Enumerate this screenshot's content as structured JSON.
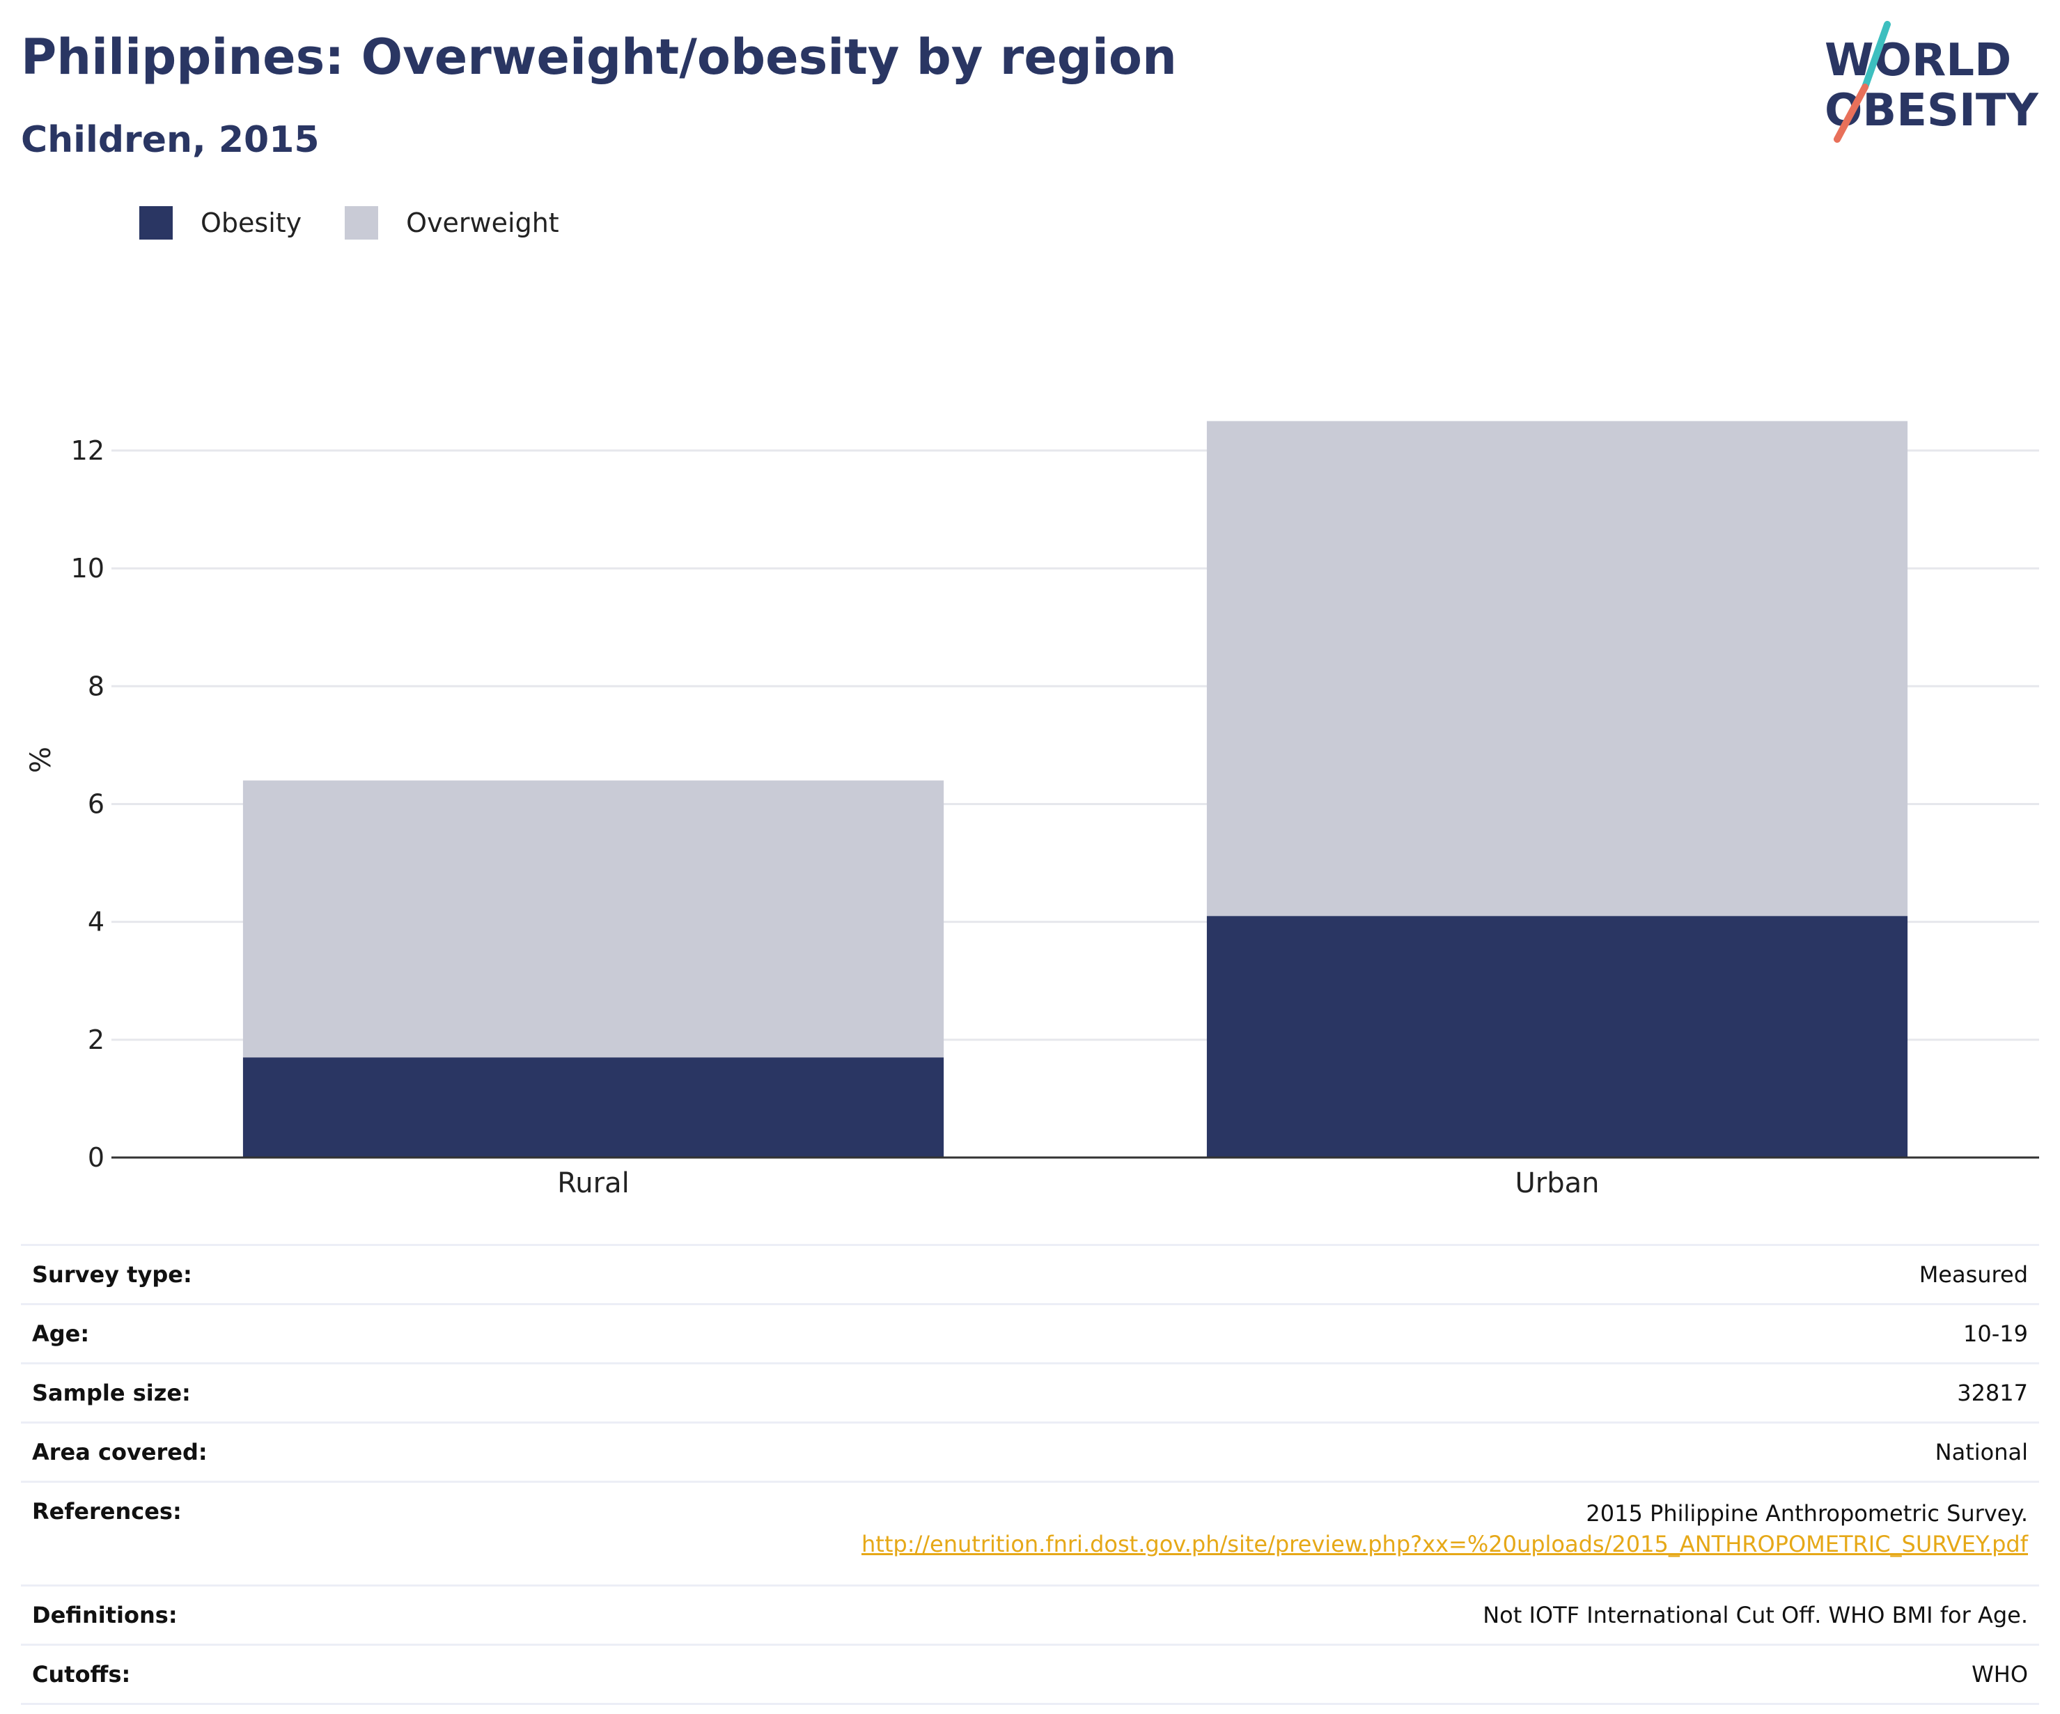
{
  "header": {
    "title": "Philippines: Overweight/obesity by region",
    "subtitle": "Children, 2015"
  },
  "logo": {
    "line1": "WORLD",
    "line2": "OBESITY",
    "slash_top_color": "#3dbfbf",
    "slash_bottom_color": "#e8705a",
    "text_color": "#2a3663"
  },
  "colors": {
    "obesity": "#2a3663",
    "overweight": "#c9cbd6",
    "grid": "#e6e7ec",
    "axis": "#333333",
    "link": "#e6a817"
  },
  "chart_data": {
    "type": "bar",
    "stacked": true,
    "categories": [
      "Rural",
      "Urban"
    ],
    "series": [
      {
        "name": "Obesity",
        "values": [
          1.7,
          4.1
        ]
      },
      {
        "name": "Overweight",
        "values": [
          4.7,
          8.4
        ]
      }
    ],
    "totals": [
      6.4,
      12.5
    ],
    "ylabel": "%",
    "ylim": [
      0,
      13.5
    ],
    "yticks": [
      0,
      2,
      4,
      6,
      8,
      10,
      12
    ],
    "grid": true,
    "legend_position": "top-left"
  },
  "info": {
    "rows": [
      {
        "label": "Survey type:",
        "value": "Measured"
      },
      {
        "label": "Age:",
        "value": "10-19"
      },
      {
        "label": "Sample size:",
        "value": "32817"
      },
      {
        "label": "Area covered:",
        "value": "National"
      },
      {
        "label": "References:",
        "value": "2015 Philippine Anthropometric Survey.",
        "link": "http://enutrition.fnri.dost.gov.ph/site/preview.php?xx=%20uploads/2015_ANTHROPOMETRIC_SURVEY.pdf"
      },
      {
        "label": "Definitions:",
        "value": "Not IOTF International Cut Off. WHO BMI for Age."
      },
      {
        "label": "Cutoffs:",
        "value": "WHO"
      }
    ]
  }
}
